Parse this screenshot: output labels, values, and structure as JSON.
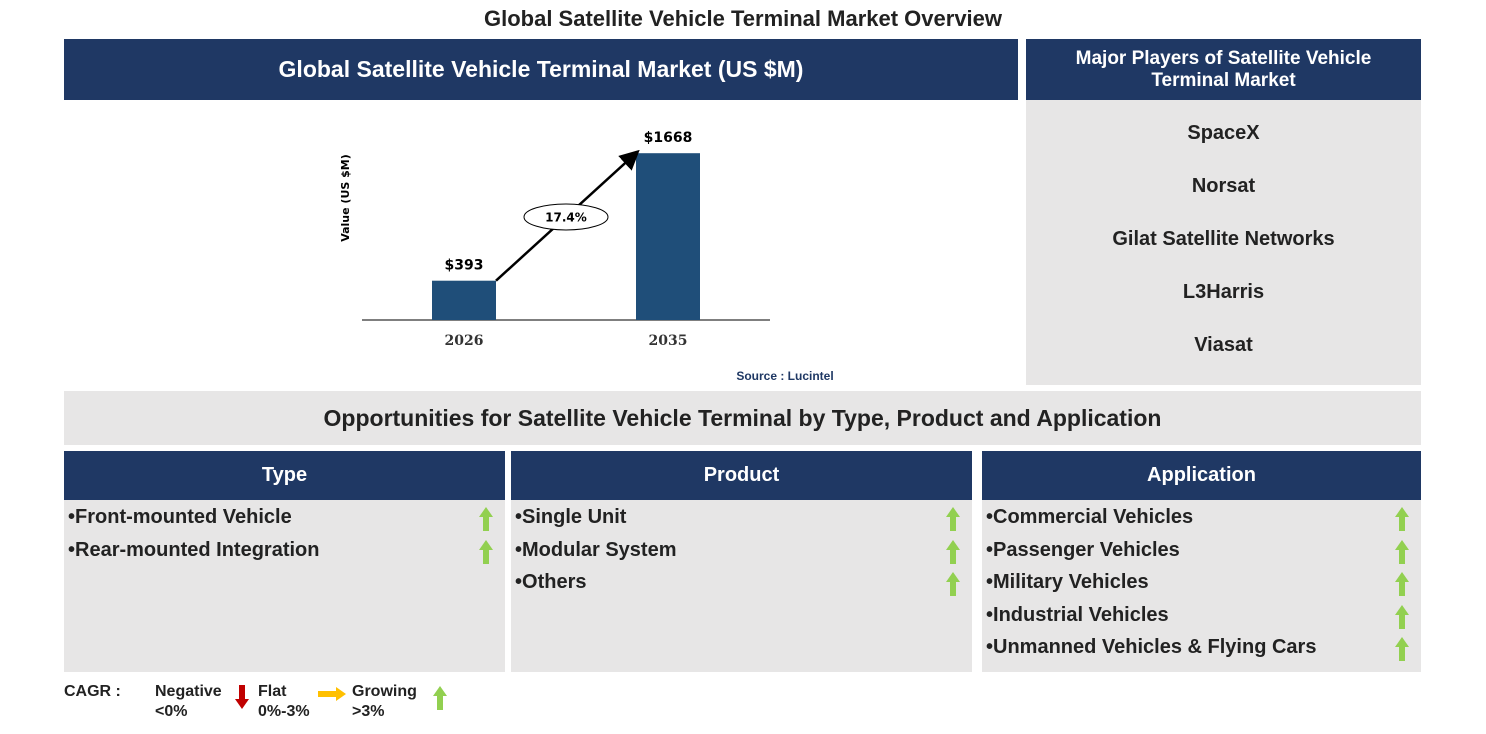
{
  "title": "Global Satellite Vehicle Terminal Market Overview",
  "chart_data": {
    "type": "bar",
    "title": "Global Satellite Vehicle Terminal Market (US $M)",
    "y_label": "Value (US $M)",
    "categories": [
      "2026",
      "2035"
    ],
    "values": [
      393,
      1668
    ],
    "value_labels": [
      "$393",
      "$1668"
    ],
    "color": "#1f4e79",
    "ylim": [
      0,
      1800
    ],
    "annotation": "17.4%",
    "source": "Source : Lucintel"
  },
  "players": {
    "title": "Major Players of Satellite Vehicle Terminal Market",
    "items": [
      "SpaceX",
      "Norsat",
      "Gilat Satellite Networks",
      "L3Harris",
      "Viasat"
    ]
  },
  "opportunities": {
    "title": "Opportunities for Satellite Vehicle Terminal by Type, Product and Application",
    "columns": [
      {
        "title": "Type",
        "items": [
          "Front-mounted Vehicle",
          "Rear-mounted Integration"
        ]
      },
      {
        "title": "Product",
        "items": [
          "Single Unit",
          "Modular System",
          "Others"
        ]
      },
      {
        "title": "Application",
        "items": [
          "Commercial Vehicles",
          "Passenger Vehicles",
          "Military Vehicles",
          "Industrial Vehicles",
          "Unmanned Vehicles & Flying Cars"
        ]
      }
    ]
  },
  "legend": {
    "label": "CAGR :",
    "items": [
      {
        "name": "Negative",
        "range": "<0%"
      },
      {
        "name": "Flat",
        "range": "0%-3%"
      },
      {
        "name": "Growing",
        "range": ">3%"
      }
    ]
  }
}
